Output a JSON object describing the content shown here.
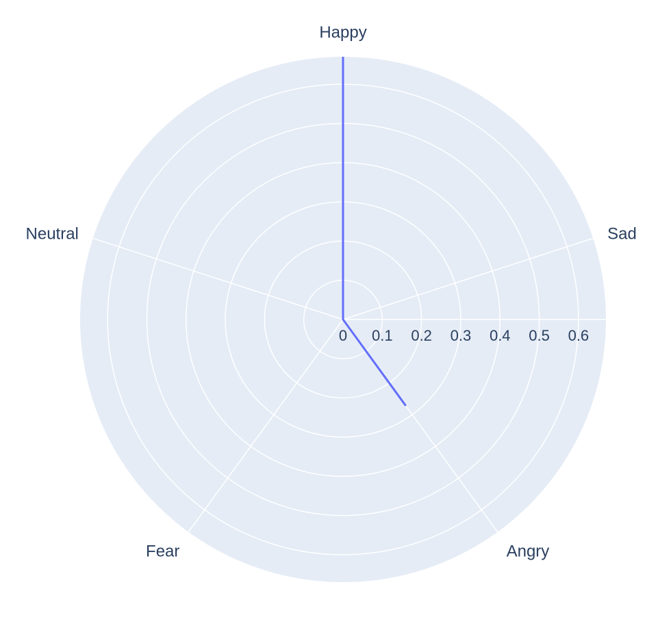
{
  "chart_data": {
    "type": "radar",
    "categories": [
      "Happy",
      "Sad",
      "Angry",
      "Fear",
      "Neutral"
    ],
    "series": [
      {
        "values": [
          0.67,
          0,
          0.27,
          0,
          0
        ]
      }
    ],
    "radial_range": [
      0,
      0.67
    ],
    "radial_ticks": [
      "0",
      "0.1",
      "0.2",
      "0.3",
      "0.4",
      "0.5",
      "0.6"
    ],
    "grid": true,
    "colors": {
      "polar_bg": "#e5ecf6",
      "grid": "#ffffff",
      "series_line": "#636efa",
      "text": "#2a3f5f"
    }
  }
}
